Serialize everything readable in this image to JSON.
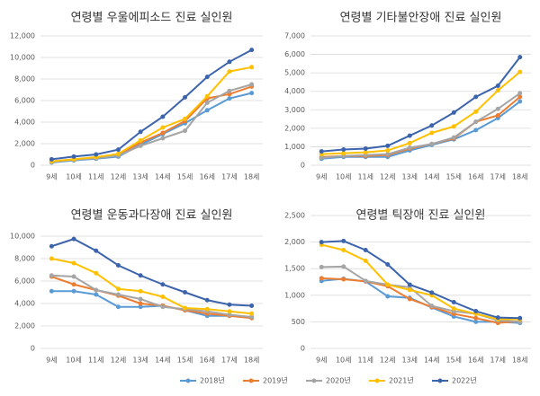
{
  "chart_data": [
    {
      "type": "line",
      "title": "연령별 우울에피소드 진료 실인원",
      "categories": [
        "9세",
        "10세",
        "11세",
        "12세",
        "13세",
        "14세",
        "15세",
        "16세",
        "17세",
        "18세"
      ],
      "ylim": [
        0,
        12000
      ],
      "yticks": [
        0,
        {
          "value": 2000,
          "label": "2,000"
        },
        {
          "value": 4000,
          "label": "4,000"
        },
        {
          "value": 6000,
          "label": "6,000"
        },
        {
          "value": 8000,
          "label": "8,000"
        },
        {
          "value": 10000,
          "label": "10,000"
        },
        {
          "value": 12000,
          "label": "12,000"
        }
      ],
      "grid": true,
      "series": [
        {
          "name": "2018년",
          "color": "#5b9bd5",
          "values": [
            250,
            450,
            600,
            800,
            1900,
            2900,
            3900,
            5100,
            6200,
            6700
          ]
        },
        {
          "name": "2019년",
          "color": "#ed7d31",
          "values": [
            350,
            550,
            700,
            950,
            2100,
            3000,
            4100,
            6200,
            6600,
            7300
          ]
        },
        {
          "name": "2020년",
          "color": "#a5a5a5",
          "values": [
            300,
            500,
            650,
            900,
            1800,
            2500,
            3200,
            5800,
            6900,
            7500
          ]
        },
        {
          "name": "2021년",
          "color": "#ffc000",
          "values": [
            350,
            550,
            750,
            1050,
            2300,
            3500,
            4300,
            6400,
            8700,
            9100
          ]
        },
        {
          "name": "2022년",
          "color": "#3c64ad",
          "values": [
            550,
            800,
            1000,
            1450,
            3100,
            4500,
            6300,
            8200,
            9600,
            10700
          ]
        }
      ]
    },
    {
      "type": "line",
      "title": "연령별 기타불안장애 진료 실인원",
      "categories": [
        "9세",
        "10세",
        "11세",
        "12세",
        "13세",
        "14세",
        "15세",
        "16세",
        "17세",
        "18세"
      ],
      "ylim": [
        0,
        7000
      ],
      "yticks": [
        0,
        {
          "value": 1000,
          "label": "1,000"
        },
        {
          "value": 2000,
          "label": "2,000"
        },
        {
          "value": 3000,
          "label": "3,000"
        },
        {
          "value": 4000,
          "label": "4,000"
        },
        {
          "value": 5000,
          "label": "5,000"
        },
        {
          "value": 6000,
          "label": "6,000"
        },
        {
          "value": 7000,
          "label": "7,000"
        }
      ],
      "grid": true,
      "series": [
        {
          "name": "2018년",
          "color": "#5b9bd5",
          "values": [
            350,
            450,
            450,
            450,
            800,
            1100,
            1400,
            1900,
            2550,
            3450
          ]
        },
        {
          "name": "2019년",
          "color": "#ed7d31",
          "values": [
            450,
            500,
            500,
            550,
            900,
            1150,
            1450,
            2350,
            2700,
            3700
          ]
        },
        {
          "name": "2020년",
          "color": "#a5a5a5",
          "values": [
            400,
            500,
            550,
            600,
            950,
            1150,
            1500,
            2350,
            3050,
            3900
          ]
        },
        {
          "name": "2021년",
          "color": "#ffc000",
          "values": [
            600,
            650,
            700,
            800,
            1200,
            1750,
            2100,
            2900,
            4050,
            5050
          ]
        },
        {
          "name": "2022년",
          "color": "#3c64ad",
          "values": [
            750,
            850,
            900,
            1050,
            1600,
            2150,
            2850,
            3700,
            4300,
            5850
          ]
        }
      ]
    },
    {
      "type": "line",
      "title": "연령별 운동과다장애 진료 실인원",
      "categories": [
        "9세",
        "10세",
        "11세",
        "12세",
        "13세",
        "14세",
        "15세",
        "16세",
        "17세",
        "18세"
      ],
      "ylim": [
        0,
        10000
      ],
      "yticks": [
        0,
        {
          "value": 2000,
          "label": "2,000"
        },
        {
          "value": 4000,
          "label": "4,000"
        },
        {
          "value": 6000,
          "label": "6,000"
        },
        {
          "value": 8000,
          "label": "8,000"
        },
        {
          "value": 10000,
          "label": "10,000"
        }
      ],
      "grid": true,
      "series": [
        {
          "name": "2018년",
          "color": "#5b9bd5",
          "values": [
            5100,
            5100,
            4800,
            3700,
            3700,
            3800,
            3400,
            2900,
            2900,
            2800
          ]
        },
        {
          "name": "2019년",
          "color": "#ed7d31",
          "values": [
            6400,
            5700,
            5200,
            4700,
            4000,
            3800,
            3400,
            3100,
            2900,
            2700
          ]
        },
        {
          "name": "2020년",
          "color": "#a5a5a5",
          "values": [
            6500,
            6400,
            5200,
            4800,
            4400,
            3700,
            3500,
            3300,
            3000,
            2800
          ]
        },
        {
          "name": "2021년",
          "color": "#ffc000",
          "values": [
            8000,
            7600,
            6700,
            5300,
            5100,
            4600,
            3600,
            3500,
            3300,
            3100
          ]
        },
        {
          "name": "2022년",
          "color": "#3c64ad",
          "values": [
            9100,
            9750,
            8700,
            7400,
            6500,
            5700,
            5000,
            4300,
            3900,
            3800
          ]
        }
      ]
    },
    {
      "type": "line",
      "title": "연령별 틱장애 진료 실인원",
      "categories": [
        "9세",
        "10세",
        "11세",
        "12세",
        "13세",
        "14세",
        "15세",
        "16세",
        "17세",
        "18세"
      ],
      "ylim": [
        0,
        2500
      ],
      "yticks": [
        0,
        500,
        {
          "value": 1000,
          "label": "1,000"
        },
        {
          "value": 1500,
          "label": "1,500"
        },
        {
          "value": 2000,
          "label": "2,000"
        },
        {
          "value": 2500,
          "label": "2,500"
        }
      ],
      "grid": true,
      "series": [
        {
          "name": "2018년",
          "color": "#5b9bd5",
          "values": [
            1270,
            1310,
            1260,
            980,
            950,
            770,
            600,
            500,
            500,
            480
          ]
        },
        {
          "name": "2019년",
          "color": "#ed7d31",
          "values": [
            1320,
            1300,
            1260,
            1170,
            930,
            780,
            650,
            570,
            480,
            510
          ]
        },
        {
          "name": "2020년",
          "color": "#a5a5a5",
          "values": [
            1530,
            1540,
            1270,
            1200,
            1150,
            800,
            700,
            650,
            530,
            500
          ]
        },
        {
          "name": "2021년",
          "color": "#ffc000",
          "values": [
            1950,
            1850,
            1650,
            1200,
            1100,
            1000,
            750,
            650,
            550,
            550
          ]
        },
        {
          "name": "2022년",
          "color": "#3c64ad",
          "values": [
            2000,
            2020,
            1850,
            1580,
            1200,
            1050,
            870,
            700,
            580,
            570
          ]
        }
      ]
    }
  ]
}
